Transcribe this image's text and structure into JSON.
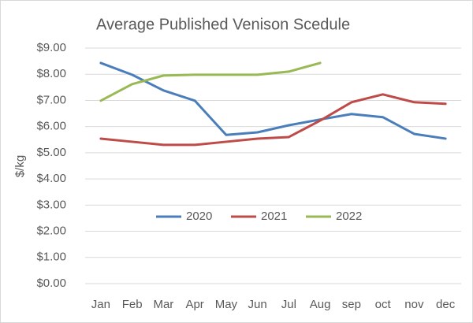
{
  "chart_data": {
    "type": "line",
    "title": "Average Published Venison Scedule",
    "ylabel": "$/kg",
    "categories": [
      "Jan",
      "Feb",
      "Mar",
      "Apr",
      "May",
      "Jun",
      "Jul",
      "Aug",
      "sep",
      "oct",
      "nov",
      "dec"
    ],
    "series": [
      {
        "name": "2020",
        "color": "#4a7ebb",
        "values": [
          8.43,
          7.98,
          7.38,
          6.99,
          5.68,
          5.78,
          6.05,
          6.27,
          6.48,
          6.36,
          5.72,
          5.54
        ]
      },
      {
        "name": "2021",
        "color": "#be4b48",
        "values": [
          5.54,
          5.42,
          5.3,
          5.3,
          5.42,
          5.54,
          5.6,
          6.23,
          6.93,
          7.23,
          6.93,
          6.87
        ]
      },
      {
        "name": "2022",
        "color": "#98b954",
        "values": [
          6.99,
          7.62,
          7.95,
          7.98,
          7.98,
          7.98,
          8.1,
          8.43,
          null,
          null,
          null,
          null
        ]
      }
    ],
    "ylim": [
      0,
      9
    ],
    "yticks": [
      {
        "value": 0,
        "label": "$0.00"
      },
      {
        "value": 1,
        "label": "$1.00"
      },
      {
        "value": 2,
        "label": "$2.00"
      },
      {
        "value": 3,
        "label": "$3.00"
      },
      {
        "value": 4,
        "label": "$4.00"
      },
      {
        "value": 5,
        "label": "$5.00"
      },
      {
        "value": 6,
        "label": "$6.00"
      },
      {
        "value": 7,
        "label": "$7.00"
      },
      {
        "value": 8,
        "label": "$8.00"
      },
      {
        "value": 9,
        "label": "$9.00"
      }
    ],
    "grid": true,
    "legend": "center"
  }
}
